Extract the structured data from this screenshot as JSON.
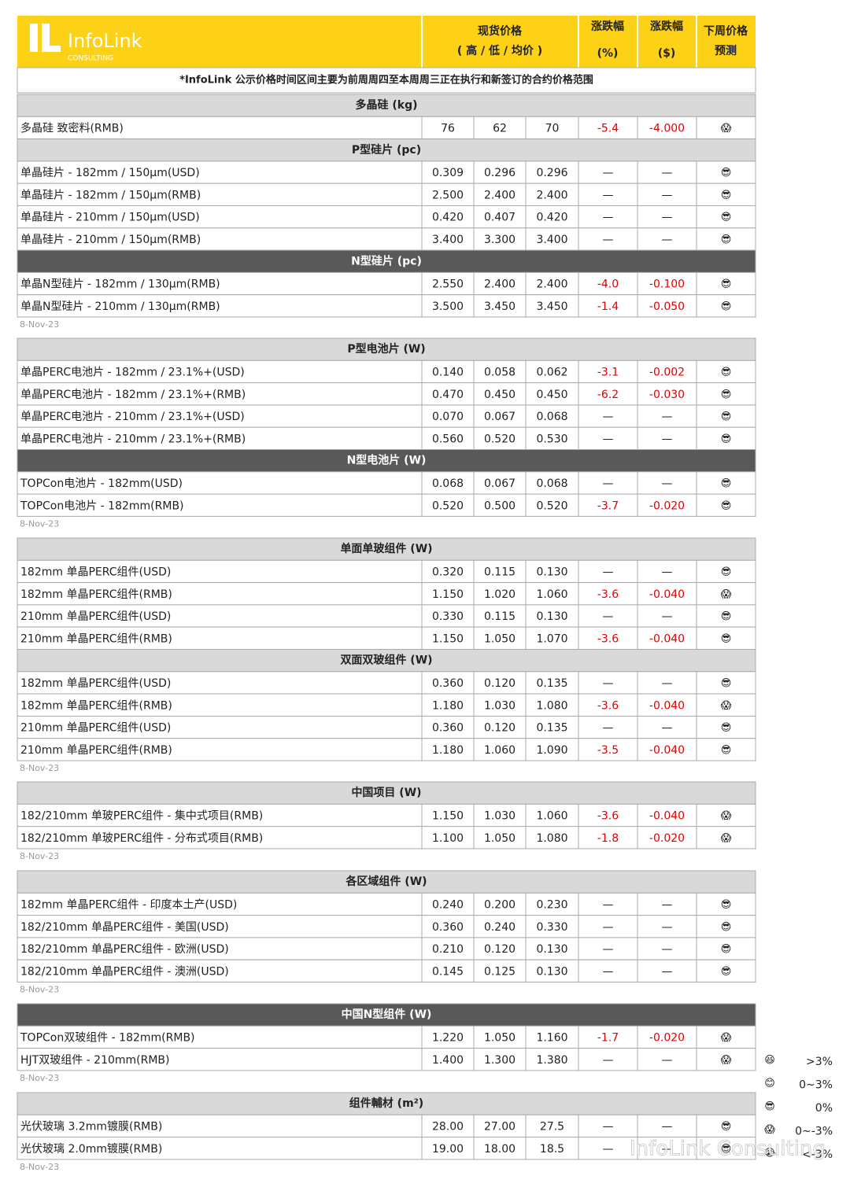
{
  "header": {
    "logo": "InfoLink",
    "logo_sub": "CONSULTING",
    "spot_price": "现货价格",
    "spot_sub": "( 高 / 低 / 均价 )",
    "change_pct": "涨跌幅",
    "change_pct_unit": "(%)",
    "change_abs": "涨跌幅",
    "change_abs_unit": "($)",
    "forecast": "下周价格",
    "forecast_sub": "预测"
  },
  "note": "*InfoLink 公示价格时间区间主要为前周周四至本周周三正在执行和新签订的合约价格范围",
  "blocks": [
    {
      "date": "8-Nov-23",
      "sections": [
        {
          "title": "多晶硅 (kg)",
          "dark": false,
          "rows": [
            [
              "多晶硅 致密料(RMB)",
              "76",
              "62",
              "70",
              "-5.4",
              "-4.000",
              "😱"
            ]
          ]
        },
        {
          "title": "P型硅片 (pc)",
          "dark": false,
          "rows": [
            [
              "单晶硅片 - 182mm / 150μm(USD)",
              "0.309",
              "0.296",
              "0.296",
              "—",
              "—",
              "😎"
            ],
            [
              "单晶硅片 - 182mm / 150μm(RMB)",
              "2.500",
              "2.400",
              "2.400",
              "—",
              "—",
              "😎"
            ],
            [
              "单晶硅片 - 210mm / 150μm(USD)",
              "0.420",
              "0.407",
              "0.420",
              "—",
              "—",
              "😎"
            ],
            [
              "单晶硅片 - 210mm / 150μm(RMB)",
              "3.400",
              "3.300",
              "3.400",
              "—",
              "—",
              "😎"
            ]
          ]
        },
        {
          "title": "N型硅片 (pc)",
          "dark": true,
          "rows": [
            [
              "单晶N型硅片 - 182mm / 130μm(RMB)",
              "2.550",
              "2.400",
              "2.400",
              "-4.0",
              "-0.100",
              "😎"
            ],
            [
              "单晶N型硅片 - 210mm / 130μm(RMB)",
              "3.500",
              "3.450",
              "3.450",
              "-1.4",
              "-0.050",
              "😎"
            ]
          ]
        }
      ]
    },
    {
      "date": "8-Nov-23",
      "sections": [
        {
          "title": "P型电池片 (W)",
          "dark": false,
          "rows": [
            [
              "单晶PERC电池片 - 182mm / 23.1%+(USD)",
              "0.140",
              "0.058",
              "0.062",
              "-3.1",
              "-0.002",
              "😎"
            ],
            [
              "单晶PERC电池片 - 182mm / 23.1%+(RMB)",
              "0.470",
              "0.450",
              "0.450",
              "-6.2",
              "-0.030",
              "😎"
            ],
            [
              "单晶PERC电池片 - 210mm / 23.1%+(USD)",
              "0.070",
              "0.067",
              "0.068",
              "—",
              "—",
              "😎"
            ],
            [
              "单晶PERC电池片 - 210mm / 23.1%+(RMB)",
              "0.560",
              "0.520",
              "0.530",
              "—",
              "—",
              "😎"
            ]
          ]
        },
        {
          "title": "N型电池片 (W)",
          "dark": true,
          "rows": [
            [
              "TOPCon电池片 - 182mm(USD)",
              "0.068",
              "0.067",
              "0.068",
              "—",
              "—",
              "😎"
            ],
            [
              "TOPCon电池片 - 182mm(RMB)",
              "0.520",
              "0.500",
              "0.520",
              "-3.7",
              "-0.020",
              "😎"
            ]
          ]
        }
      ]
    },
    {
      "date": "8-Nov-23",
      "sections": [
        {
          "title": "单面单玻组件 (W)",
          "dark": false,
          "rows": [
            [
              "182mm 单晶PERC组件(USD)",
              "0.320",
              "0.115",
              "0.130",
              "—",
              "—",
              "😎"
            ],
            [
              "182mm 单晶PERC组件(RMB)",
              "1.150",
              "1.020",
              "1.060",
              "-3.6",
              "-0.040",
              "😱"
            ],
            [
              "210mm 单晶PERC组件(USD)",
              "0.330",
              "0.115",
              "0.130",
              "—",
              "—",
              "😎"
            ],
            [
              "210mm 单晶PERC组件(RMB)",
              "1.150",
              "1.050",
              "1.070",
              "-3.6",
              "-0.040",
              "😎"
            ]
          ]
        },
        {
          "title": "双面双玻组件 (W)",
          "dark": false,
          "rows": [
            [
              "182mm 单晶PERC组件(USD)",
              "0.360",
              "0.120",
              "0.135",
              "—",
              "—",
              "😎"
            ],
            [
              "182mm 单晶PERC组件(RMB)",
              "1.180",
              "1.030",
              "1.080",
              "-3.6",
              "-0.040",
              "😱"
            ],
            [
              "210mm 单晶PERC组件(USD)",
              "0.360",
              "0.120",
              "0.135",
              "—",
              "—",
              "😎"
            ],
            [
              "210mm 单晶PERC组件(RMB)",
              "1.180",
              "1.060",
              "1.090",
              "-3.5",
              "-0.040",
              "😎"
            ]
          ]
        }
      ]
    },
    {
      "date": "8-Nov-23",
      "sections": [
        {
          "title": "中国项目 (W)",
          "dark": false,
          "rows": [
            [
              "182/210mm 单玻PERC组件 - 集中式项目(RMB)",
              "1.150",
              "1.030",
              "1.060",
              "-3.6",
              "-0.040",
              "😱"
            ],
            [
              "182/210mm 单玻PERC组件 - 分布式项目(RMB)",
              "1.100",
              "1.050",
              "1.080",
              "-1.8",
              "-0.020",
              "😱"
            ]
          ]
        }
      ]
    },
    {
      "date": "8-Nov-23",
      "sections": [
        {
          "title": "各区域组件 (W)",
          "dark": false,
          "rows": [
            [
              "182mm 单晶PERC组件 - 印度本土产(USD)",
              "0.240",
              "0.200",
              "0.230",
              "—",
              "—",
              "😎"
            ],
            [
              "182/210mm 单晶PERC组件 - 美国(USD)",
              "0.360",
              "0.240",
              "0.330",
              "—",
              "—",
              "😎"
            ],
            [
              "182/210mm 单晶PERC组件 - 欧洲(USD)",
              "0.210",
              "0.120",
              "0.130",
              "—",
              "—",
              "😎"
            ],
            [
              "182/210mm 单晶PERC组件 - 澳洲(USD)",
              "0.145",
              "0.125",
              "0.130",
              "—",
              "—",
              "😎"
            ]
          ]
        }
      ]
    },
    {
      "date": "8-Nov-23",
      "sections": [
        {
          "title": "中国N型组件 (W)",
          "dark": true,
          "rows": [
            [
              "TOPCon双玻组件 - 182mm(RMB)",
              "1.220",
              "1.050",
              "1.160",
              "-1.7",
              "-0.020",
              "😱"
            ],
            [
              "HJT双玻组件 - 210mm(RMB)",
              "1.400",
              "1.300",
              "1.380",
              "—",
              "—",
              "😱"
            ]
          ]
        }
      ]
    },
    {
      "date": "8-Nov-23",
      "sections": [
        {
          "title": "组件輔材 (m²)",
          "dark": false,
          "rows": [
            [
              "光伏玻璃 3.2mm镀膜(RMB)",
              "28.00",
              "27.00",
              "27.5",
              "—",
              "—",
              "😎"
            ],
            [
              "光伏玻璃 2.0mm镀膜(RMB)",
              "19.00",
              "18.00",
              "18.5",
              "—",
              "—",
              "😎"
            ]
          ]
        }
      ]
    }
  ],
  "legend": [
    [
      "😆",
      ">3%"
    ],
    [
      "😊",
      "0~3%"
    ],
    [
      "😎",
      "0%"
    ],
    [
      "😱",
      "0~-3%"
    ],
    [
      "😭",
      "<-3%"
    ]
  ],
  "watermark": "InfoLink Consulting"
}
